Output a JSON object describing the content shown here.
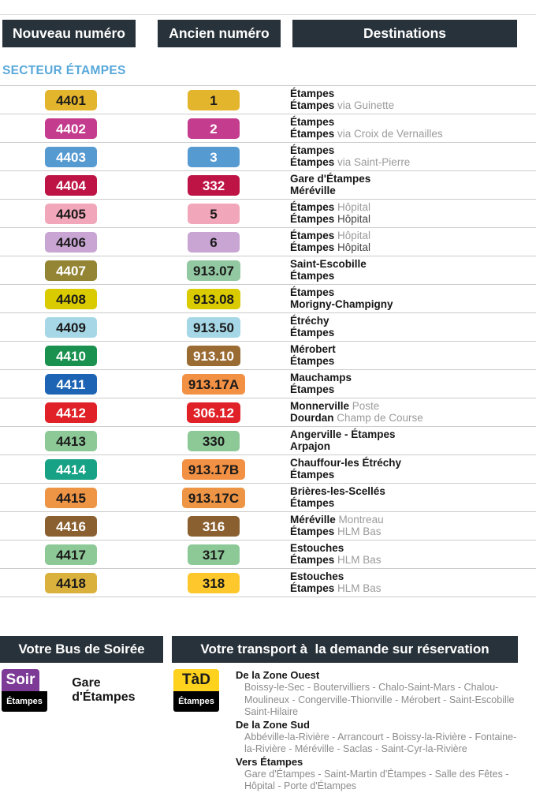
{
  "colors": {
    "header_bg": "#28323a",
    "section_title": "#58a8da",
    "divider": "#cccccc",
    "sub_text": "#9b9b9b"
  },
  "table": {
    "headers": {
      "new": "Nouveau numéro",
      "old": "Ancien numéro",
      "dest": "Destinations"
    },
    "section": "SECTEUR ÉTAMPES",
    "rows": [
      {
        "new": {
          "label": "4401",
          "bg": "#e3b52d",
          "fg": "#1a1a1a"
        },
        "old": {
          "label": "1",
          "bg": "#e3b52d",
          "fg": "#1a1a1a"
        },
        "dest": [
          [
            {
              "t": "Étampes",
              "s": "main"
            }
          ],
          [
            {
              "t": "Étampes",
              "s": "main"
            },
            {
              "t": " via Guinette",
              "s": "sub"
            }
          ]
        ]
      },
      {
        "new": {
          "label": "4402",
          "bg": "#c43c8e",
          "fg": "#ffffff"
        },
        "old": {
          "label": "2",
          "bg": "#c43c8e",
          "fg": "#ffffff"
        },
        "dest": [
          [
            {
              "t": "Étampes",
              "s": "main"
            }
          ],
          [
            {
              "t": "Étampes",
              "s": "main"
            },
            {
              "t": " via Croix de Vernailles",
              "s": "sub"
            }
          ]
        ]
      },
      {
        "new": {
          "label": "4403",
          "bg": "#569ad2",
          "fg": "#ffffff"
        },
        "old": {
          "label": "3",
          "bg": "#569ad2",
          "fg": "#ffffff"
        },
        "dest": [
          [
            {
              "t": "Étampes",
              "s": "main"
            }
          ],
          [
            {
              "t": "Étampes",
              "s": "main"
            },
            {
              "t": " via Saint-Pierre",
              "s": "sub"
            }
          ]
        ]
      },
      {
        "new": {
          "label": "4404",
          "bg": "#bd1445",
          "fg": "#ffffff"
        },
        "old": {
          "label": "332",
          "bg": "#bd1445",
          "fg": "#ffffff"
        },
        "dest": [
          [
            {
              "t": "Gare d'Étampes",
              "s": "main"
            }
          ],
          [
            {
              "t": "Méréville",
              "s": "main"
            }
          ]
        ]
      },
      {
        "new": {
          "label": "4405",
          "bg": "#f2a6ba",
          "fg": "#1a1a1a"
        },
        "old": {
          "label": "5",
          "bg": "#f2a6ba",
          "fg": "#1a1a1a"
        },
        "dest": [
          [
            {
              "t": "Étampes",
              "s": "main"
            },
            {
              "t": " Hôpital",
              "s": "sub"
            }
          ],
          [
            {
              "t": "Étampes",
              "s": "main"
            },
            {
              "t": " Hôpital",
              "s": "dark"
            }
          ]
        ]
      },
      {
        "new": {
          "label": "4406",
          "bg": "#c8a5d3",
          "fg": "#1a1a1a"
        },
        "old": {
          "label": "6",
          "bg": "#c8a5d3",
          "fg": "#1a1a1a"
        },
        "dest": [
          [
            {
              "t": "Étampes",
              "s": "main"
            },
            {
              "t": " Hôpital",
              "s": "sub"
            }
          ],
          [
            {
              "t": "Étampes",
              "s": "main"
            },
            {
              "t": " Hôpital",
              "s": "dark"
            }
          ]
        ]
      },
      {
        "new": {
          "label": "4407",
          "bg": "#948534",
          "fg": "#ffffff"
        },
        "old": {
          "label": "913.07",
          "bg": "#93c9a2",
          "fg": "#1a1a1a"
        },
        "dest": [
          [
            {
              "t": "Saint-Escobille",
              "s": "main"
            }
          ],
          [
            {
              "t": "Étampes",
              "s": "main"
            }
          ]
        ]
      },
      {
        "new": {
          "label": "4408",
          "bg": "#d9cb00",
          "fg": "#1a1a1a"
        },
        "old": {
          "label": "913.08",
          "bg": "#d9cb00",
          "fg": "#1a1a1a"
        },
        "dest": [
          [
            {
              "t": "Étampes",
              "s": "main"
            }
          ],
          [
            {
              "t": "Morigny-Champigny",
              "s": "main"
            }
          ]
        ]
      },
      {
        "new": {
          "label": "4409",
          "bg": "#a6d7e6",
          "fg": "#1a1a1a"
        },
        "old": {
          "label": "913.50",
          "bg": "#a6d7e6",
          "fg": "#1a1a1a"
        },
        "dest": [
          [
            {
              "t": "Étréchy",
              "s": "main"
            }
          ],
          [
            {
              "t": "Étampes",
              "s": "main"
            }
          ]
        ]
      },
      {
        "new": {
          "label": "4410",
          "bg": "#1b9150",
          "fg": "#ffffff"
        },
        "old": {
          "label": "913.10",
          "bg": "#9a6b33",
          "fg": "#ffffff"
        },
        "dest": [
          [
            {
              "t": "Mérobert",
              "s": "main"
            }
          ],
          [
            {
              "t": "Étampes",
              "s": "main"
            }
          ]
        ]
      },
      {
        "new": {
          "label": "4411",
          "bg": "#1d64b4",
          "fg": "#ffffff"
        },
        "old": {
          "label": "913.17A",
          "bg": "#f29044",
          "fg": "#1a1a1a"
        },
        "dest": [
          [
            {
              "t": "Mauchamps",
              "s": "main"
            }
          ],
          [
            {
              "t": "Étampes",
              "s": "main"
            }
          ]
        ]
      },
      {
        "new": {
          "label": "4412",
          "bg": "#e02127",
          "fg": "#ffffff"
        },
        "old": {
          "label": "306.12",
          "bg": "#e02127",
          "fg": "#ffffff"
        },
        "dest": [
          [
            {
              "t": "Monnerville",
              "s": "main"
            },
            {
              "t": " Poste",
              "s": "sub"
            }
          ],
          [
            {
              "t": "Dourdan",
              "s": "main"
            },
            {
              "t": " Champ de Course",
              "s": "sub"
            }
          ]
        ]
      },
      {
        "new": {
          "label": "4413",
          "bg": "#8dc897",
          "fg": "#1a1a1a"
        },
        "old": {
          "label": "330",
          "bg": "#8dc897",
          "fg": "#1a1a1a"
        },
        "dest": [
          [
            {
              "t": "Angerville - Étampes",
              "s": "main"
            }
          ],
          [
            {
              "t": "Arpajon",
              "s": "main"
            }
          ]
        ]
      },
      {
        "new": {
          "label": "4414",
          "bg": "#17a185",
          "fg": "#ffffff"
        },
        "old": {
          "label": "913.17B",
          "bg": "#f29044",
          "fg": "#1a1a1a"
        },
        "dest": [
          [
            {
              "t": "Chauffour-les Étréchy",
              "s": "main"
            }
          ],
          [
            {
              "t": "Étampes",
              "s": "main"
            }
          ]
        ]
      },
      {
        "new": {
          "label": "4415",
          "bg": "#ee9445",
          "fg": "#1a1a1a"
        },
        "old": {
          "label": "913.17C",
          "bg": "#ee9445",
          "fg": "#1a1a1a"
        },
        "dest": [
          [
            {
              "t": "Brières-les-Scellés",
              "s": "main"
            }
          ],
          [
            {
              "t": "Étampes",
              "s": "main"
            }
          ]
        ]
      },
      {
        "new": {
          "label": "4416",
          "bg": "#8a6030",
          "fg": "#ffffff"
        },
        "old": {
          "label": "316",
          "bg": "#8a6030",
          "fg": "#ffffff"
        },
        "dest": [
          [
            {
              "t": "Méréville",
              "s": "main"
            },
            {
              "t": " Montreau",
              "s": "sub"
            }
          ],
          [
            {
              "t": "Étampes",
              "s": "main"
            },
            {
              "t": " HLM Bas",
              "s": "sub"
            }
          ]
        ]
      },
      {
        "new": {
          "label": "4417",
          "bg": "#8dc897",
          "fg": "#1a1a1a"
        },
        "old": {
          "label": "317",
          "bg": "#8dc897",
          "fg": "#1a1a1a"
        },
        "dest": [
          [
            {
              "t": "Estouches",
              "s": "main"
            }
          ],
          [
            {
              "t": "Étampes",
              "s": "main"
            },
            {
              "t": " HLM Bas",
              "s": "sub"
            }
          ]
        ]
      },
      {
        "new": {
          "label": "4418",
          "bg": "#d9b13c",
          "fg": "#1a1a1a"
        },
        "old": {
          "label": "318",
          "bg": "#fec72b",
          "fg": "#1a1a1a"
        },
        "dest": [
          [
            {
              "t": "Estouches",
              "s": "main"
            }
          ],
          [
            {
              "t": "Étampes",
              "s": "main"
            },
            {
              "t": " HLM Bas",
              "s": "sub"
            }
          ]
        ]
      }
    ]
  },
  "evening": {
    "header": "Votre Bus de Soirée",
    "badge": {
      "label": "Soir",
      "bg": "#7d3a96",
      "fg": "#ffffff"
    },
    "network": "Étampes",
    "destination": "Gare d'Étampes"
  },
  "tad": {
    "header": "Votre transport à  la demande sur réservation",
    "badge": {
      "label": "TàD",
      "bg": "#ffd21e",
      "fg": "#1a1a1a"
    },
    "network": "Étampes",
    "groups": [
      {
        "title": "De la Zone Ouest",
        "lines": [
          "Boissy-le-Sec - Boutervilliers - Chalo-Saint-Mars - Chalou-",
          "Moulineux - Congerville-Thionville - Mérobert - Saint-Escobille",
          "Saint-Hilaire"
        ]
      },
      {
        "title": "De la Zone Sud",
        "lines": [
          "Abbéville-la-Rivière - Arrancourt -  Boissy-la-Rivière -  Fontaine-",
          "la-Rivière - Méréville - Saclas - Saint-Cyr-la-Rivière"
        ]
      },
      {
        "title": "Vers Étampes",
        "lines": [
          "Gare d'Étampes - Saint-Martin d'Étampes - Salle des Fêtes -",
          "Hôpital - Porte d'Étampes"
        ]
      }
    ]
  }
}
